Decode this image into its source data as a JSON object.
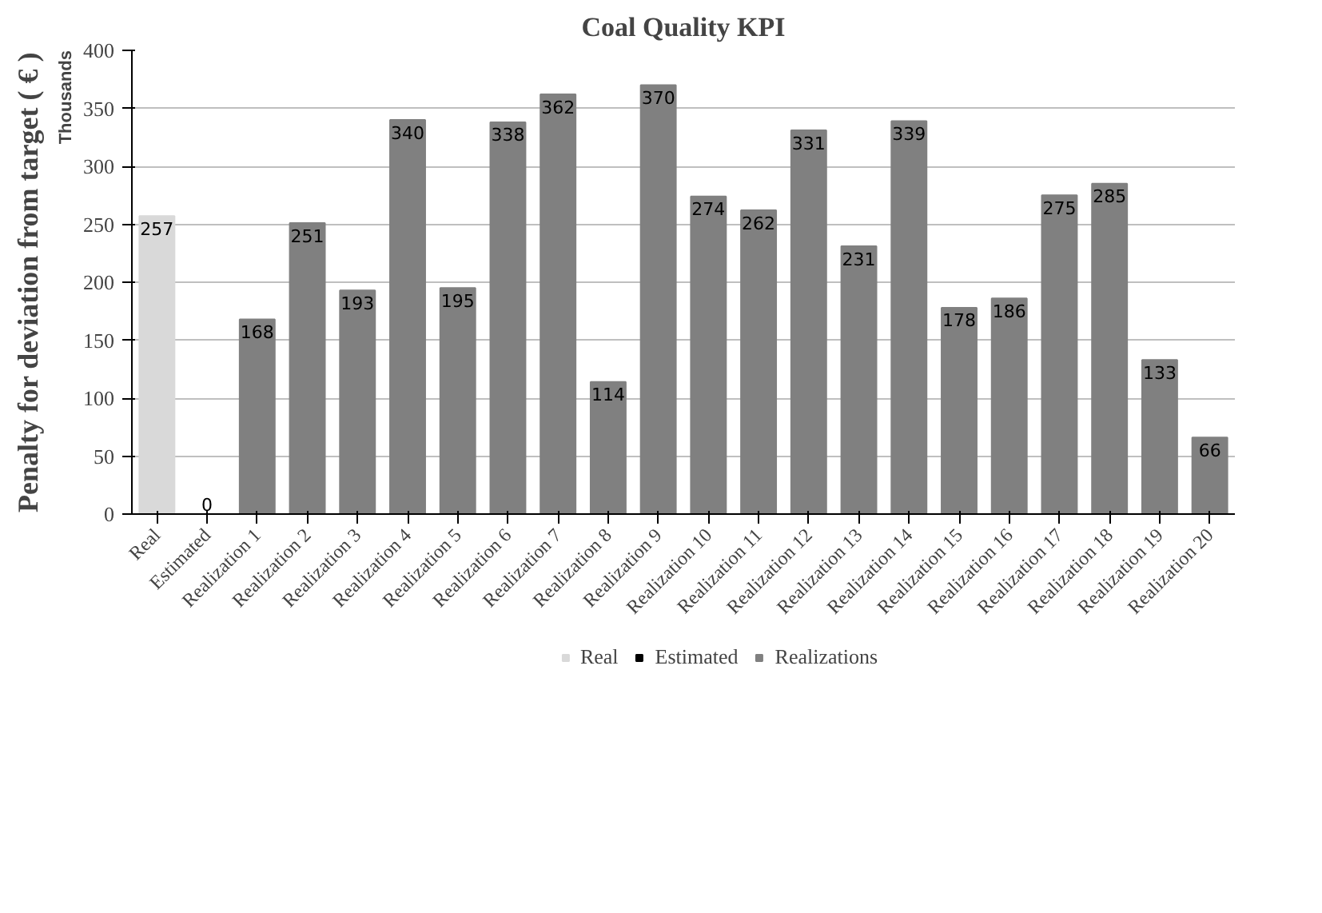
{
  "chart_data": {
    "type": "bar",
    "title": "Coal Quality KPI",
    "ylabel": "Penalty for deviation from target ( € )",
    "annotations": [
      "Thousands"
    ],
    "categories": [
      "Real",
      "Estimated",
      "Realization 1",
      "Realization 2",
      "Realization 3",
      "Realization 4",
      "Realization 5",
      "Realization 6",
      "Realization 7",
      "Realization 8",
      "Realization 9",
      "Realization 10",
      "Realization 11",
      "Realization 12",
      "Realization 13",
      "Realization 14",
      "Realization 15",
      "Realization 16",
      "Realization 17",
      "Realization 18",
      "Realization 19",
      "Realization 20"
    ],
    "series": [
      {
        "name": "Real",
        "color": "#d9d9d9",
        "values": [
          257,
          null,
          null,
          null,
          null,
          null,
          null,
          null,
          null,
          null,
          null,
          null,
          null,
          null,
          null,
          null,
          null,
          null,
          null,
          null,
          null,
          null
        ]
      },
      {
        "name": "Estimated",
        "color": "#000000",
        "values": [
          null,
          0,
          null,
          null,
          null,
          null,
          null,
          null,
          null,
          null,
          null,
          null,
          null,
          null,
          null,
          null,
          null,
          null,
          null,
          null,
          null,
          null
        ]
      },
      {
        "name": "Realizations",
        "color": "#808080",
        "values": [
          null,
          null,
          168,
          251,
          193,
          340,
          195,
          338,
          362,
          114,
          370,
          274,
          262,
          331,
          231,
          339,
          178,
          186,
          275,
          285,
          133,
          66
        ]
      }
    ],
    "ylim": [
      0,
      400
    ],
    "yticks": [
      0,
      50,
      100,
      150,
      200,
      250,
      300,
      350,
      400
    ],
    "grid": "y",
    "legend": "bottom",
    "data_labels": true
  }
}
